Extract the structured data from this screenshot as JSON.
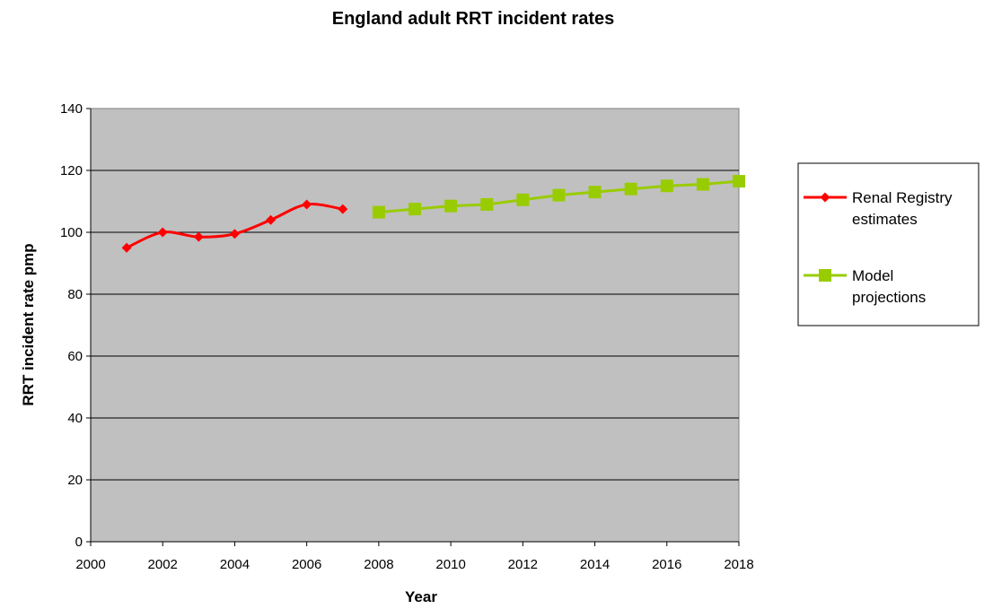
{
  "chart_data": {
    "type": "line",
    "title": "England adult RRT incident rates",
    "xlabel": "Year",
    "ylabel": "RRT incident rate pmp",
    "xlim": [
      2000,
      2018
    ],
    "ylim": [
      0,
      140
    ],
    "x_ticks": [
      "2000",
      "2002",
      "2004",
      "2006",
      "2008",
      "2010",
      "2012",
      "2014",
      "2016",
      "2018"
    ],
    "y_ticks": [
      "0",
      "20",
      "40",
      "60",
      "80",
      "100",
      "120",
      "140"
    ],
    "grid": true,
    "legend_position": "right",
    "plot_background": "#c0c0c0",
    "series": [
      {
        "name": [
          "Renal Registry",
          "estimates"
        ],
        "color": "#ff0000",
        "marker": "diamond",
        "smooth": true,
        "x": [
          2001,
          2002,
          2003,
          2004,
          2005,
          2006,
          2007
        ],
        "values": [
          95,
          100,
          98.5,
          99.5,
          104,
          109,
          107.5
        ]
      },
      {
        "name": [
          "Model",
          "projections"
        ],
        "color": "#99cc00",
        "marker": "square",
        "smooth": false,
        "x": [
          2008,
          2009,
          2010,
          2011,
          2012,
          2013,
          2014,
          2015,
          2016,
          2017,
          2018
        ],
        "values": [
          106.5,
          107.5,
          108.5,
          109,
          110.5,
          112,
          113,
          114,
          115,
          115.5,
          116.5
        ]
      }
    ]
  }
}
